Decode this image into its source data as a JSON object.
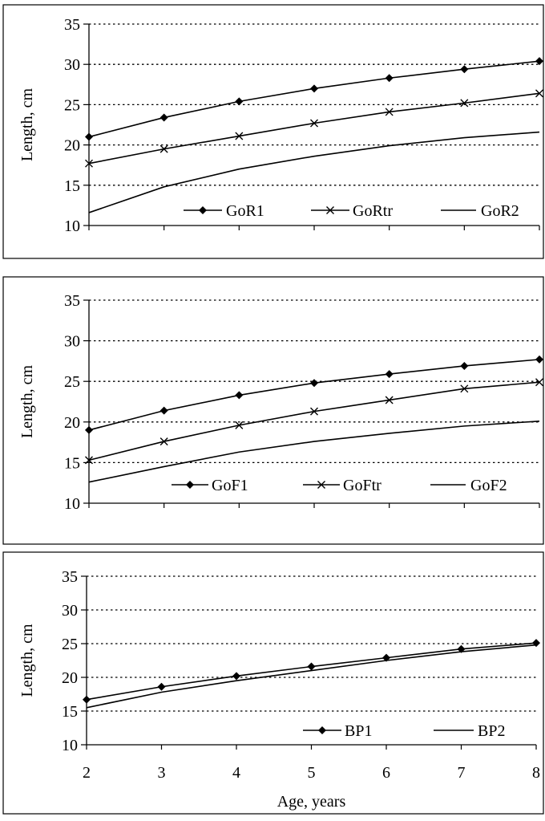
{
  "chart_data": [
    {
      "type": "line",
      "ylabel": "Length, cm",
      "xlabel": "",
      "ylim": [
        10,
        35
      ],
      "xlim": [
        2,
        8
      ],
      "yticks": [
        "10",
        "15",
        "20",
        "25",
        "30",
        "35"
      ],
      "xtick_labels_shown": false,
      "grid": "horizontal dotted",
      "legend_position": "bottom-inside",
      "x": [
        2,
        3,
        4,
        5,
        6,
        7,
        8
      ],
      "series": [
        {
          "name": "GoR1",
          "marker": "diamond",
          "line": "solid",
          "values": [
            21.0,
            23.4,
            25.4,
            27.0,
            28.3,
            29.4,
            30.4
          ]
        },
        {
          "name": "GoRtr",
          "marker": "x",
          "line": "solid",
          "values": [
            17.7,
            19.5,
            21.1,
            22.7,
            24.1,
            25.2,
            26.4
          ]
        },
        {
          "name": "GoR2",
          "marker": "none",
          "line": "solid",
          "values": [
            11.6,
            14.8,
            17.0,
            18.6,
            19.9,
            20.9,
            21.6
          ]
        }
      ]
    },
    {
      "type": "line",
      "ylabel": "Length, cm",
      "xlabel": "",
      "ylim": [
        10,
        35
      ],
      "xlim": [
        2,
        8
      ],
      "yticks": [
        "10",
        "15",
        "20",
        "25",
        "30",
        "35"
      ],
      "xtick_labels_shown": false,
      "grid": "horizontal dotted",
      "legend_position": "bottom-inside",
      "x": [
        2,
        3,
        4,
        5,
        6,
        7,
        8
      ],
      "series": [
        {
          "name": "GoF1",
          "marker": "diamond",
          "line": "solid",
          "values": [
            19.0,
            21.4,
            23.3,
            24.8,
            25.9,
            26.9,
            27.7
          ]
        },
        {
          "name": "GoFtr",
          "marker": "x",
          "line": "solid",
          "values": [
            15.3,
            17.6,
            19.6,
            21.3,
            22.7,
            24.1,
            24.9
          ]
        },
        {
          "name": "GoF2",
          "marker": "none",
          "line": "solid",
          "values": [
            12.6,
            14.5,
            16.3,
            17.6,
            18.6,
            19.5,
            20.1
          ]
        }
      ]
    },
    {
      "type": "line",
      "ylabel": "Length, cm",
      "xlabel": "Age, years",
      "ylim": [
        10,
        35
      ],
      "xlim": [
        2,
        8
      ],
      "yticks": [
        "10",
        "15",
        "20",
        "25",
        "30",
        "35"
      ],
      "xticks": [
        "2",
        "3",
        "4",
        "5",
        "6",
        "7",
        "8"
      ],
      "xtick_labels_shown": true,
      "grid": "horizontal dotted",
      "legend_position": "bottom-inside",
      "x": [
        2,
        3,
        4,
        5,
        6,
        7,
        8
      ],
      "series": [
        {
          "name": "BP1",
          "marker": "diamond",
          "line": "solid",
          "values": [
            16.7,
            18.6,
            20.2,
            21.6,
            22.9,
            24.2,
            25.1
          ]
        },
        {
          "name": "BP2",
          "marker": "none",
          "line": "solid",
          "values": [
            15.5,
            17.8,
            19.5,
            21.0,
            22.5,
            23.8,
            24.8
          ]
        }
      ]
    }
  ]
}
